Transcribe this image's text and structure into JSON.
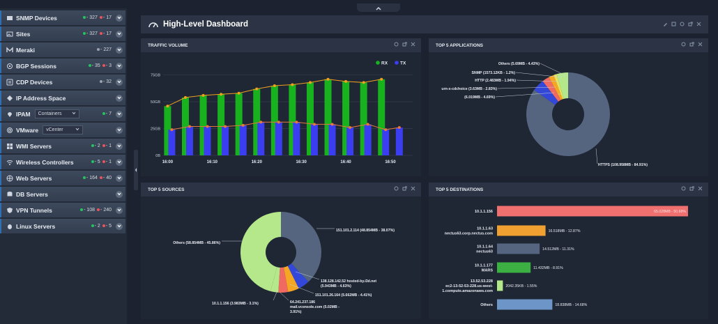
{
  "sidebar": {
    "items": [
      {
        "label": "SNMP Devices",
        "icon": "server-icon",
        "green": "327",
        "red": "17"
      },
      {
        "label": "Sites",
        "icon": "image-icon",
        "green": "327",
        "red": "17"
      },
      {
        "label": "Meraki",
        "icon": "meraki-icon",
        "gray": "227"
      },
      {
        "label": "BGP Sessions",
        "icon": "bgp-icon",
        "green": "35",
        "red": "3"
      },
      {
        "label": "CDP Devices",
        "icon": "cdp-icon",
        "gray": "32"
      },
      {
        "label": "IP Address Space",
        "icon": "ip-space-icon"
      },
      {
        "label": "IPAM",
        "icon": "location-pin-icon",
        "select": "Containers",
        "green": "7"
      },
      {
        "label": "VMware",
        "icon": "vmware-icon",
        "select": "vCenter"
      },
      {
        "label": "WMI Servers",
        "icon": "windows-icon",
        "green": "2",
        "red": "1"
      },
      {
        "label": "Wireless Controllers",
        "icon": "wifi-icon",
        "green": "5",
        "red": "1"
      },
      {
        "label": "Web Servers",
        "icon": "globe-icon",
        "green": "164",
        "red": "40"
      },
      {
        "label": "DB Servers",
        "icon": "database-icon"
      },
      {
        "label": "VPN Tunnels",
        "icon": "shield-icon",
        "green": "108",
        "red": "240"
      },
      {
        "label": "Linux Servers",
        "icon": "linux-icon",
        "green": "2",
        "red": "5"
      }
    ]
  },
  "dashboard": {
    "title": "High-Level Dashboard"
  },
  "panels": {
    "traffic": {
      "title": "TRAFFIC VOLUME"
    },
    "apps": {
      "title": "TOP 5 APPLICATIONS"
    },
    "sources": {
      "title": "TOP 5 SOURCES"
    },
    "destinations": {
      "title": "TOP 5 DESTINATIONS"
    }
  },
  "colors": {
    "rx": "#19b21f",
    "tx": "#3a3ef0",
    "rx_line": "#f0a020",
    "tx_line": "#e8783a",
    "donut_main": "#56657f",
    "green_light": "#b4e88a",
    "red": "#f06a62",
    "orange": "#f5a623",
    "blue": "#3347d8",
    "bar_red": "#f07070",
    "bar_orange": "#f0a030",
    "bar_slate": "#56657f",
    "bar_green": "#3cb043",
    "bar_light": "#b4e88a",
    "bar_blue": "#6e95c8"
  },
  "chart_data": [
    {
      "type": "bar",
      "title": "TRAFFIC VOLUME",
      "x": [
        "16:00",
        "16:02",
        "16:04",
        "16:06",
        "16:08",
        "16:10",
        "16:12",
        "16:14",
        "16:16",
        "16:18",
        "16:20",
        "16:22",
        "16:24",
        "16:26",
        "16:28",
        "16:30",
        "16:32",
        "16:34",
        "16:36",
        "16:38",
        "16:40",
        "16:42",
        "16:44",
        "16:46",
        "16:48",
        "16:50",
        "16:52",
        "16:54"
      ],
      "xticks": [
        "16:00",
        "16:10",
        "16:20",
        "16:30",
        "16:40",
        "16:50"
      ],
      "yticks": [
        "0B",
        "25GB",
        "50GB",
        "75GB"
      ],
      "ylim": [
        0,
        78
      ],
      "series": [
        {
          "name": "RX",
          "values": [
            46,
            null,
            54,
            null,
            56,
            null,
            57,
            null,
            58,
            null,
            62,
            null,
            65,
            null,
            66,
            null,
            68,
            null,
            71,
            null,
            69,
            null,
            68,
            null,
            71,
            null,
            null,
            null
          ]
        },
        {
          "name": "TX",
          "values": [
            24,
            null,
            27,
            null,
            27,
            null,
            27,
            null,
            28,
            null,
            31,
            null,
            31,
            null,
            31,
            null,
            29,
            null,
            29,
            null,
            26,
            null,
            29,
            null,
            24,
            null,
            26,
            null
          ]
        }
      ],
      "legend": "top-right"
    },
    {
      "type": "pie",
      "title": "TOP 5 APPLICATIONS",
      "slices": [
        {
          "label": "HTTPS (108.958MB - 84.91%)",
          "value": 84.91
        },
        {
          "label": "(6.019MB - 4.69%)",
          "value": 4.69
        },
        {
          "label": "urn-x-cdchoice (3.63MB - 2.83%)",
          "value": 2.83
        },
        {
          "label": "HTTP (2.483MB - 1.94%)",
          "value": 1.94
        },
        {
          "label": "SNMP (1573.12KB - 1.2%)",
          "value": 1.2
        },
        {
          "label": "Others (5.69MB - 4.43%)",
          "value": 4.43
        }
      ]
    },
    {
      "type": "pie",
      "title": "TOP 5 SOURCES",
      "slices": [
        {
          "label": "151.101.2.114 (48.854MB - 38.07%)",
          "value": 38.07
        },
        {
          "label": "138.128.142.52 hosted-by.i3d.net (5.943MB - 4.63%)",
          "value": 4.63
        },
        {
          "label": "151.101.26.164 (5.662MB - 4.41%)",
          "value": 4.41
        },
        {
          "label": "64.241.237.186 mail.vconsole.com (5.02MB - 3.91%)",
          "value": 3.91
        },
        {
          "label": "10.1.1.156 (3.983MB - 3.1%)",
          "value": 3.1
        },
        {
          "label": "Others (58.854MB - 45.86%)",
          "value": 45.86
        }
      ]
    },
    {
      "type": "bar",
      "title": "TOP 5 DESTINATIONS",
      "categories": [
        "10.1.1.156",
        "10.1.1.63 nectus63.corp.nectus.com",
        "10.1.1.64 nectus63",
        "10.1.1.177 MARS",
        "13.52.53.228 ec2-13-52-53-228.us-west-1.compute.amazonaws.com",
        "Others"
      ],
      "values": [
        50.68,
        12.87,
        11.31,
        8.91,
        1.55,
        14.68
      ],
      "data_labels": [
        "65.028MB - 50.68%",
        "16.518MB - 12.87%",
        "14.512MB - 11.31%",
        "11.432MB - 8.91%",
        "2042.35KB - 1.55%",
        "18.838MB - 14.68%"
      ]
    }
  ],
  "legend": {
    "rx": "RX",
    "tx": "TX"
  },
  "app_labels": [
    "Others (5.69MB - 4.43%)",
    "SNMP (1573.12KB - 1.2%)",
    "HTTP (2.483MB - 1.94%)",
    "urn-x-cdchoice (3.63MB - 2.83%)",
    "(6.019MB - 4.69%)",
    "HTTPS (108.958MB - 84.91%)"
  ],
  "src_labels": {
    "s1": "151.101.2.114 (48.854MB - 38.07%)",
    "others": "Others (58.854MB - 45.86%)",
    "s2a": "138.128.142.52 hosted-by.i3d.net",
    "s2b": "(5.943MB - 4.63%)",
    "s3": "151.101.26.164 (5.662MB - 4.41%)",
    "s4a": "64.241.237.186",
    "s4b": "mail.vconsole.com (5.02MB -",
    "s4c": "3.91%)",
    "s5": "10.1.1.156 (3.983MB - 3.1%)"
  },
  "dest_labels": [
    {
      "l1": "10.1.1.156",
      "l2": "",
      "l3": ""
    },
    {
      "l1": "10.1.1.63",
      "l2": "nectus63.corp.nectus.com",
      "l3": ""
    },
    {
      "l1": "10.1.1.64",
      "l2": "nectus63",
      "l3": ""
    },
    {
      "l1": "10.1.1.177",
      "l2": "MARS",
      "l3": ""
    },
    {
      "l1": "13.52.53.228",
      "l2": "ec2-13-52-53-228.us-west-",
      "l3": "1.compute.amazonaws.com"
    },
    {
      "l1": "Others",
      "l2": "",
      "l3": ""
    }
  ]
}
